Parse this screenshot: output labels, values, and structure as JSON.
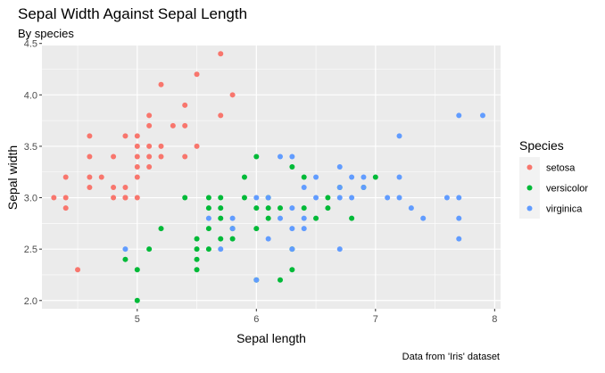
{
  "chart_data": {
    "type": "scatter",
    "title": "Sepal Width Against Sepal Length",
    "subtitle": "By species",
    "xlabel": "Sepal length",
    "ylabel": "Sepal width",
    "caption": "Data from 'Iris' dataset",
    "xlim": [
      4.2,
      8.05
    ],
    "ylim": [
      1.92,
      4.48
    ],
    "x_ticks": [
      5,
      6,
      7,
      8
    ],
    "y_ticks": [
      2.0,
      2.5,
      3.0,
      3.5,
      4.0,
      4.5
    ],
    "x_tick_labels": [
      "5",
      "6",
      "7",
      "8"
    ],
    "y_tick_labels": [
      "2.0",
      "2.5",
      "3.0",
      "3.5",
      "4.0",
      "4.5"
    ],
    "panel_background": "#ebebeb",
    "grid": true,
    "legend": {
      "title": "Species",
      "placement": "right"
    },
    "series": [
      {
        "name": "setosa",
        "color": "#F8766D",
        "points": [
          [
            4.3,
            3.0
          ],
          [
            4.4,
            3.2
          ],
          [
            4.4,
            3.0
          ],
          [
            4.4,
            2.9
          ],
          [
            4.5,
            2.3
          ],
          [
            4.6,
            3.6
          ],
          [
            4.6,
            3.4
          ],
          [
            4.6,
            3.2
          ],
          [
            4.6,
            3.1
          ],
          [
            4.7,
            3.2
          ],
          [
            4.8,
            3.4
          ],
          [
            4.8,
            3.0
          ],
          [
            4.8,
            3.1
          ],
          [
            4.9,
            3.6
          ],
          [
            4.9,
            3.1
          ],
          [
            4.9,
            3.0
          ],
          [
            5.0,
            3.6
          ],
          [
            5.0,
            3.5
          ],
          [
            5.0,
            3.4
          ],
          [
            5.0,
            3.3
          ],
          [
            5.0,
            3.2
          ],
          [
            5.0,
            3.0
          ],
          [
            5.1,
            3.8
          ],
          [
            5.1,
            3.7
          ],
          [
            5.1,
            3.5
          ],
          [
            5.1,
            3.4
          ],
          [
            5.1,
            3.3
          ],
          [
            5.2,
            4.1
          ],
          [
            5.2,
            3.5
          ],
          [
            5.2,
            3.4
          ],
          [
            5.3,
            3.7
          ],
          [
            5.4,
            3.9
          ],
          [
            5.4,
            3.7
          ],
          [
            5.4,
            3.4
          ],
          [
            5.5,
            4.2
          ],
          [
            5.5,
            3.5
          ],
          [
            5.7,
            4.4
          ],
          [
            5.7,
            3.8
          ],
          [
            5.8,
            4.0
          ],
          [
            4.9,
            3.0
          ]
        ]
      },
      {
        "name": "versicolor",
        "color": "#00BA38",
        "points": [
          [
            4.9,
            2.4
          ],
          [
            5.0,
            2.0
          ],
          [
            5.0,
            2.3
          ],
          [
            5.1,
            2.5
          ],
          [
            5.2,
            2.7
          ],
          [
            5.4,
            3.0
          ],
          [
            5.5,
            2.3
          ],
          [
            5.5,
            2.4
          ],
          [
            5.5,
            2.5
          ],
          [
            5.5,
            2.6
          ],
          [
            5.6,
            2.5
          ],
          [
            5.6,
            2.7
          ],
          [
            5.6,
            2.9
          ],
          [
            5.6,
            3.0
          ],
          [
            5.7,
            2.6
          ],
          [
            5.7,
            2.8
          ],
          [
            5.7,
            2.9
          ],
          [
            5.7,
            3.0
          ],
          [
            5.8,
            2.6
          ],
          [
            5.8,
            2.7
          ],
          [
            5.9,
            3.0
          ],
          [
            5.9,
            3.2
          ],
          [
            6.0,
            2.2
          ],
          [
            6.0,
            2.7
          ],
          [
            6.0,
            2.9
          ],
          [
            6.0,
            3.4
          ],
          [
            6.1,
            2.8
          ],
          [
            6.1,
            2.9
          ],
          [
            6.1,
            3.0
          ],
          [
            6.2,
            2.2
          ],
          [
            6.2,
            2.9
          ],
          [
            6.3,
            2.3
          ],
          [
            6.3,
            2.5
          ],
          [
            6.3,
            3.3
          ],
          [
            6.4,
            2.9
          ],
          [
            6.4,
            3.2
          ],
          [
            6.5,
            2.8
          ],
          [
            6.6,
            2.9
          ],
          [
            6.6,
            3.0
          ],
          [
            6.7,
            3.1
          ],
          [
            6.8,
            2.8
          ],
          [
            6.9,
            3.1
          ],
          [
            7.0,
            3.2
          ]
        ]
      },
      {
        "name": "virginica",
        "color": "#619CFF",
        "points": [
          [
            4.9,
            2.5
          ],
          [
            5.6,
            2.8
          ],
          [
            5.7,
            2.5
          ],
          [
            5.8,
            2.7
          ],
          [
            5.8,
            2.8
          ],
          [
            6.0,
            2.2
          ],
          [
            6.0,
            3.0
          ],
          [
            6.1,
            2.6
          ],
          [
            6.1,
            3.0
          ],
          [
            6.2,
            2.8
          ],
          [
            6.2,
            3.4
          ],
          [
            6.3,
            2.5
          ],
          [
            6.3,
            2.7
          ],
          [
            6.3,
            2.9
          ],
          [
            6.3,
            3.4
          ],
          [
            6.4,
            2.7
          ],
          [
            6.4,
            2.8
          ],
          [
            6.4,
            3.1
          ],
          [
            6.5,
            3.0
          ],
          [
            6.5,
            3.2
          ],
          [
            6.7,
            2.5
          ],
          [
            6.7,
            3.0
          ],
          [
            6.7,
            3.1
          ],
          [
            6.7,
            3.3
          ],
          [
            6.8,
            3.0
          ],
          [
            6.8,
            3.2
          ],
          [
            6.9,
            3.1
          ],
          [
            6.9,
            3.2
          ],
          [
            7.1,
            3.0
          ],
          [
            7.2,
            3.0
          ],
          [
            7.2,
            3.2
          ],
          [
            7.2,
            3.6
          ],
          [
            7.3,
            2.9
          ],
          [
            7.4,
            2.8
          ],
          [
            7.6,
            3.0
          ],
          [
            7.7,
            2.6
          ],
          [
            7.7,
            2.8
          ],
          [
            7.7,
            3.0
          ],
          [
            7.7,
            3.8
          ],
          [
            7.9,
            3.8
          ]
        ]
      }
    ]
  }
}
